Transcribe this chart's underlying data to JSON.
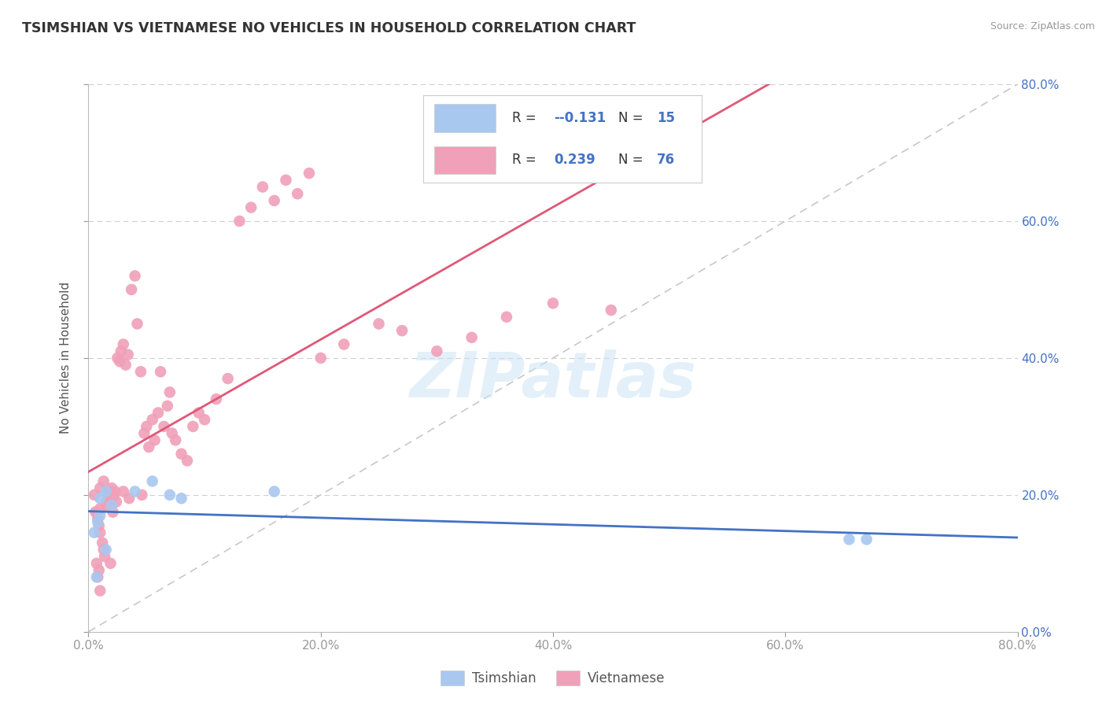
{
  "title": "TSIMSHIAN VS VIETNAMESE NO VEHICLES IN HOUSEHOLD CORRELATION CHART",
  "source": "Source: ZipAtlas.com",
  "ylabel": "No Vehicles in Household",
  "watermark": "ZIPatlas",
  "tsimshian_color": "#a8c8f0",
  "vietnamese_color": "#f0a0b8",
  "tsimshian_line_color": "#4472c4",
  "vietnamese_line_color": "#e05878",
  "diagonal_color": "#c8c8c8",
  "legend_tsimshian_label": "Tsimshian",
  "legend_vietnamese_label": "Vietnamese",
  "legend_r_tsimshian": "-0.131",
  "legend_n_tsimshian": "15",
  "legend_r_vietnamese": "0.239",
  "legend_n_vietnamese": "76",
  "xlim": [
    0.0,
    0.8
  ],
  "ylim": [
    0.0,
    0.8
  ],
  "tsimshian_x": [
    0.005,
    0.007,
    0.008,
    0.01,
    0.01,
    0.015,
    0.015,
    0.02,
    0.04,
    0.055,
    0.07,
    0.08,
    0.16,
    0.655,
    0.67
  ],
  "tsimshian_y": [
    0.145,
    0.08,
    0.16,
    0.17,
    0.195,
    0.12,
    0.205,
    0.185,
    0.205,
    0.22,
    0.2,
    0.195,
    0.205,
    0.135,
    0.135
  ],
  "vietnamese_x": [
    0.005,
    0.006,
    0.007,
    0.007,
    0.008,
    0.008,
    0.009,
    0.009,
    0.01,
    0.01,
    0.01,
    0.01,
    0.012,
    0.013,
    0.013,
    0.014,
    0.015,
    0.016,
    0.017,
    0.018,
    0.018,
    0.019,
    0.02,
    0.02,
    0.021,
    0.022,
    0.023,
    0.024,
    0.025,
    0.027,
    0.028,
    0.03,
    0.03,
    0.032,
    0.034,
    0.035,
    0.037,
    0.04,
    0.042,
    0.045,
    0.046,
    0.048,
    0.05,
    0.052,
    0.055,
    0.057,
    0.06,
    0.062,
    0.065,
    0.068,
    0.07,
    0.072,
    0.075,
    0.08,
    0.085,
    0.09,
    0.095,
    0.1,
    0.11,
    0.12,
    0.13,
    0.14,
    0.15,
    0.16,
    0.17,
    0.18,
    0.19,
    0.2,
    0.22,
    0.25,
    0.27,
    0.3,
    0.33,
    0.36,
    0.4,
    0.45
  ],
  "vietnamese_y": [
    0.2,
    0.175,
    0.1,
    0.175,
    0.08,
    0.165,
    0.09,
    0.155,
    0.06,
    0.145,
    0.18,
    0.21,
    0.13,
    0.12,
    0.22,
    0.11,
    0.185,
    0.19,
    0.2,
    0.205,
    0.19,
    0.1,
    0.21,
    0.195,
    0.175,
    0.2,
    0.205,
    0.19,
    0.4,
    0.395,
    0.41,
    0.42,
    0.205,
    0.39,
    0.405,
    0.195,
    0.5,
    0.52,
    0.45,
    0.38,
    0.2,
    0.29,
    0.3,
    0.27,
    0.31,
    0.28,
    0.32,
    0.38,
    0.3,
    0.33,
    0.35,
    0.29,
    0.28,
    0.26,
    0.25,
    0.3,
    0.32,
    0.31,
    0.34,
    0.37,
    0.6,
    0.62,
    0.65,
    0.63,
    0.66,
    0.64,
    0.67,
    0.4,
    0.42,
    0.45,
    0.44,
    0.41,
    0.43,
    0.46,
    0.48,
    0.47
  ]
}
